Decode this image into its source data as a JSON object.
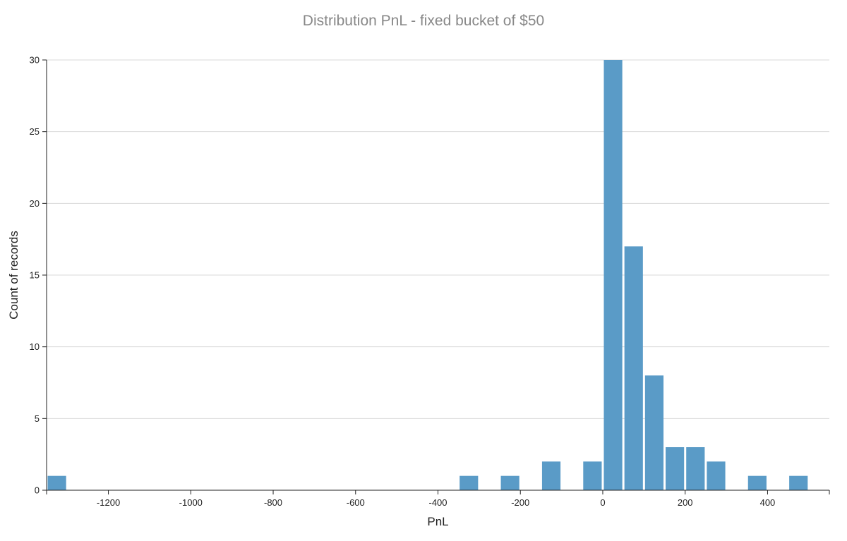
{
  "chart_data": {
    "type": "bar",
    "title": "Distribution PnL - fixed bucket of $50",
    "xlabel": "PnL",
    "ylabel": "Count of records",
    "bucket_size": 50,
    "xlim": [
      -1350,
      550
    ],
    "ylim": [
      0,
      30
    ],
    "grid": true,
    "bar_color": "#5a9bc7",
    "x_ticks": [
      -1200,
      -1000,
      -800,
      -600,
      -400,
      -200,
      0,
      200,
      400
    ],
    "x_tick_labels": [
      "-1200",
      "-1000",
      "-800",
      "-600",
      "-400",
      "-200",
      "0",
      "200",
      "400"
    ],
    "y_ticks": [
      0,
      5,
      10,
      15,
      20,
      25,
      30
    ],
    "y_tick_labels": [
      "0",
      "5",
      "10",
      "15",
      "20",
      "25",
      "30"
    ],
    "bins": [
      {
        "start": -1350,
        "end": -1300,
        "count": 1
      },
      {
        "start": -350,
        "end": -300,
        "count": 1
      },
      {
        "start": -250,
        "end": -200,
        "count": 1
      },
      {
        "start": -150,
        "end": -100,
        "count": 2
      },
      {
        "start": -50,
        "end": 0,
        "count": 2
      },
      {
        "start": 0,
        "end": 50,
        "count": 30
      },
      {
        "start": 50,
        "end": 100,
        "count": 17
      },
      {
        "start": 100,
        "end": 150,
        "count": 8
      },
      {
        "start": 150,
        "end": 200,
        "count": 3
      },
      {
        "start": 200,
        "end": 250,
        "count": 3
      },
      {
        "start": 250,
        "end": 300,
        "count": 2
      },
      {
        "start": 350,
        "end": 400,
        "count": 1
      },
      {
        "start": 450,
        "end": 500,
        "count": 1
      }
    ]
  }
}
